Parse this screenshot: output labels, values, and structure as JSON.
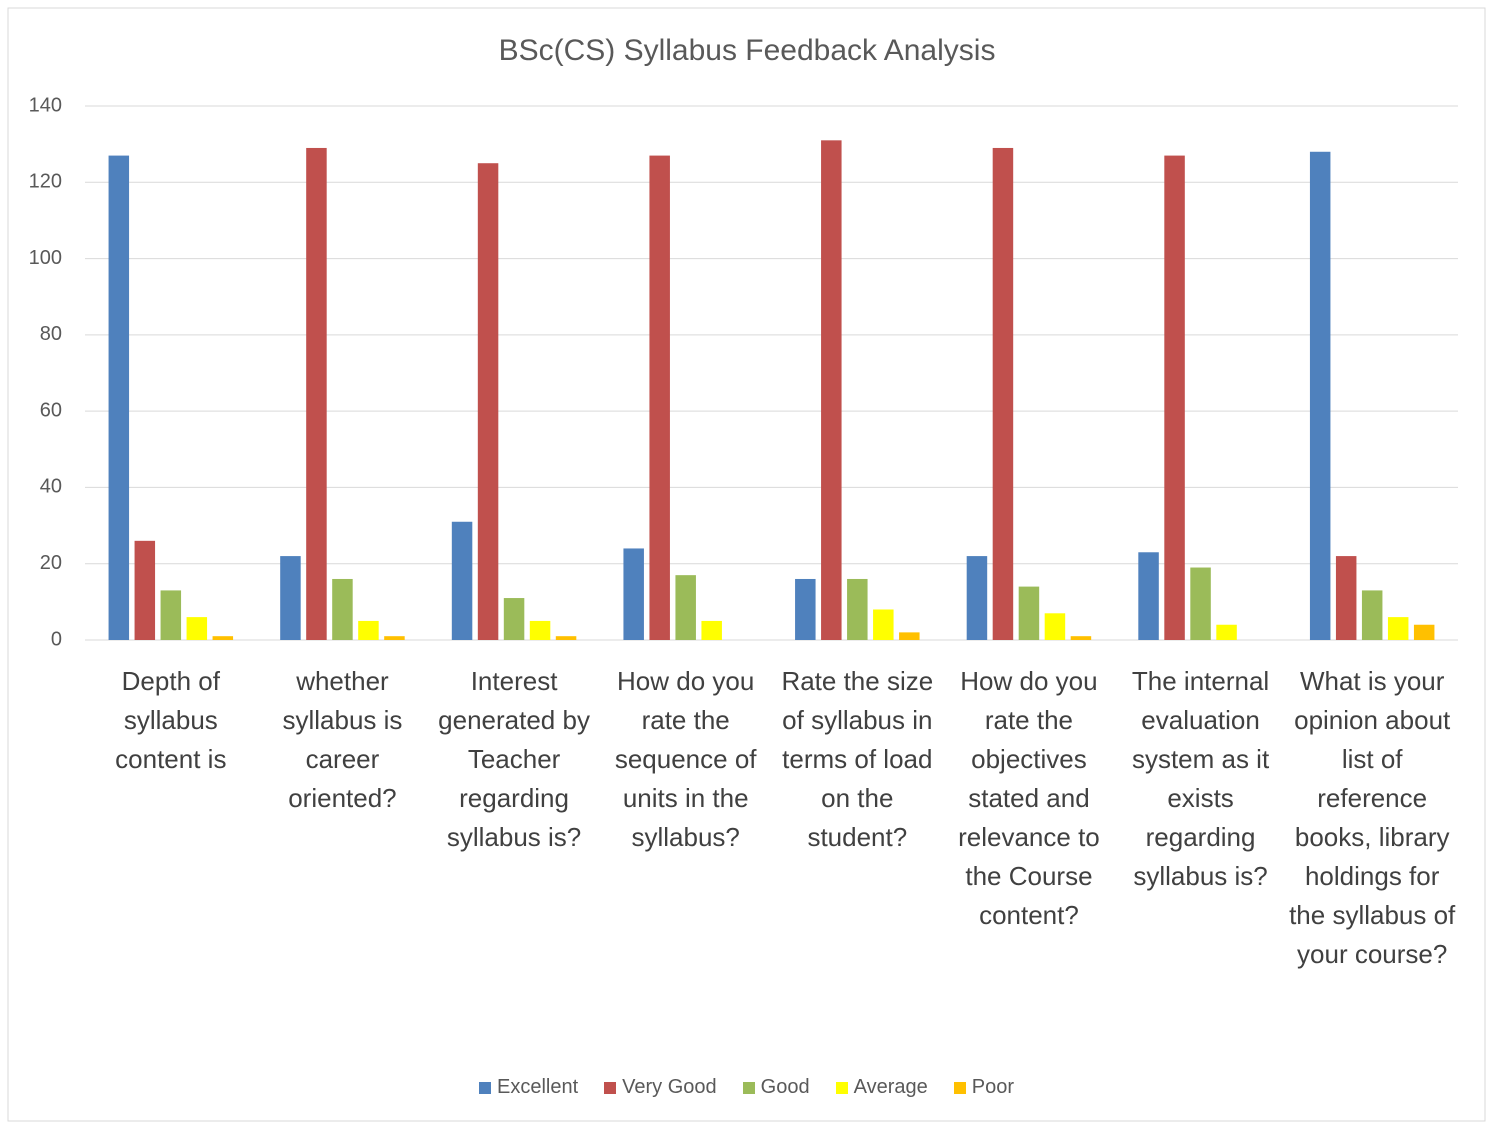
{
  "chart_data": {
    "type": "bar",
    "title": "BSc(CS) Syllabus Feedback Analysis",
    "categories": [
      "Depth of syllabus content is",
      "whether syllabus is career oriented?",
      "Interest generated by Teacher regarding syllabus is?",
      "How do you rate the sequence of units in the syllabus?",
      "Rate the size of syllabus in terms of load on the student?",
      "How do you rate the objectives stated and relevance to the Course content?",
      "The internal evaluation system as it exists regarding syllabus is?",
      "What is your opinion about list of reference books, library holdings for the syllabus of your course?"
    ],
    "series": [
      {
        "name": "Excellent",
        "color": "#4f81bd",
        "values": [
          127,
          22,
          31,
          24,
          16,
          22,
          23,
          128
        ]
      },
      {
        "name": "Very Good",
        "color": "#c0504d",
        "values": [
          26,
          129,
          125,
          127,
          131,
          129,
          127,
          22
        ]
      },
      {
        "name": "Good",
        "color": "#9bbb59",
        "values": [
          13,
          16,
          11,
          17,
          16,
          14,
          19,
          13
        ]
      },
      {
        "name": "Average",
        "color": "#ffff00",
        "values": [
          6,
          5,
          5,
          5,
          8,
          7,
          4,
          6
        ]
      },
      {
        "name": "Poor",
        "color": "#ffc000",
        "values": [
          1,
          1,
          1,
          0,
          2,
          1,
          0,
          4
        ]
      }
    ],
    "ylim": [
      0,
      140
    ],
    "yticks": [
      0,
      20,
      40,
      60,
      80,
      100,
      120,
      140
    ],
    "grid": true,
    "legend": "bottom"
  }
}
